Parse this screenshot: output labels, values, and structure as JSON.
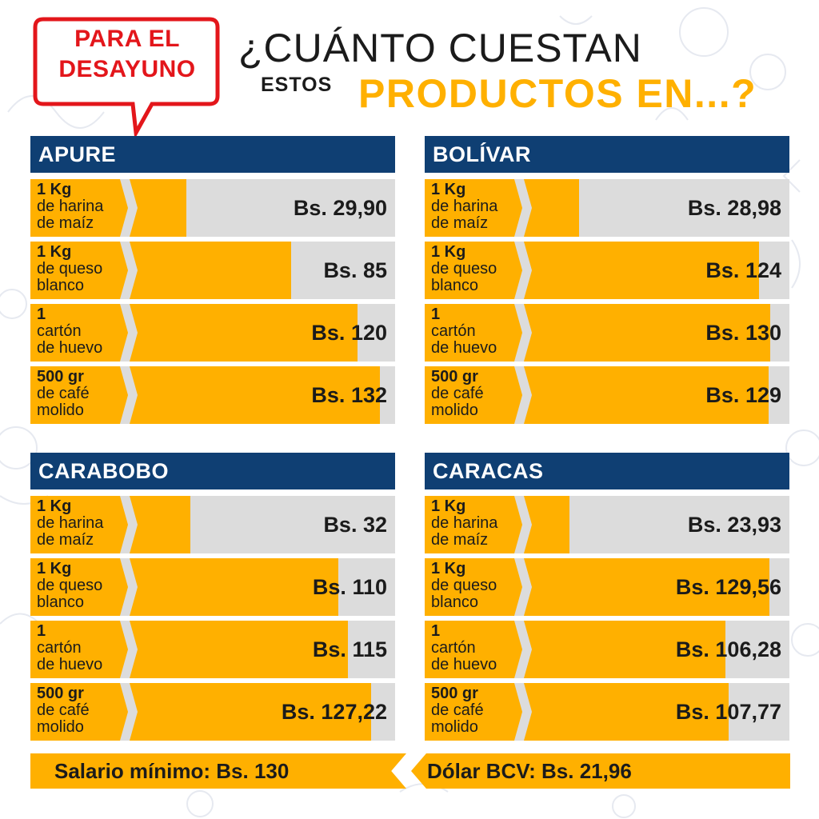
{
  "header": {
    "badge_line1": "PARA EL",
    "badge_line2": "DESAYUNO",
    "title_line1": "¿CUÁNTO CUESTAN",
    "title_estos": "ESTOS",
    "title_line2": "PRODUCTOS EN...?"
  },
  "colors": {
    "header_blue": "#0f3f73",
    "bar_yellow": "#ffb000",
    "row_gray": "#dcdcdc",
    "badge_red": "#e3161b"
  },
  "chart_data": {
    "type": "bar",
    "categories": [
      "1 Kg de harina de maíz",
      "1 Kg de queso blanco",
      "1 cartón de huevo",
      "500 gr de café molido"
    ],
    "scale_max": 140,
    "panels": [
      {
        "region": "APURE",
        "rows": [
          {
            "qty": "1 Kg",
            "desc1": "de harina",
            "desc2": "de maíz",
            "value": 29.9,
            "price": "Bs. 29,90"
          },
          {
            "qty": "1 Kg",
            "desc1": "de queso",
            "desc2": "blanco",
            "value": 85,
            "price": "Bs. 85"
          },
          {
            "qty": "1",
            "desc1": "cartón",
            "desc2": "de huevo",
            "value": 120,
            "price": "Bs. 120"
          },
          {
            "qty": "500 gr",
            "desc1": "de café",
            "desc2": "molido",
            "value": 132,
            "price": "Bs. 132"
          }
        ]
      },
      {
        "region": "BOLÍVAR",
        "rows": [
          {
            "qty": "1 Kg",
            "desc1": "de harina",
            "desc2": "de maíz",
            "value": 28.98,
            "price": "Bs. 28,98"
          },
          {
            "qty": "1 Kg",
            "desc1": "de queso",
            "desc2": "blanco",
            "value": 124,
            "price": "Bs. 124"
          },
          {
            "qty": "1",
            "desc1": "cartón",
            "desc2": "de huevo",
            "value": 130,
            "price": "Bs. 130"
          },
          {
            "qty": "500 gr",
            "desc1": "de café",
            "desc2": "molido",
            "value": 129,
            "price": "Bs. 129"
          }
        ]
      },
      {
        "region": "CARABOBO",
        "rows": [
          {
            "qty": "1 Kg",
            "desc1": "de harina",
            "desc2": "de maíz",
            "value": 32,
            "price": "Bs. 32"
          },
          {
            "qty": "1 Kg",
            "desc1": "de queso",
            "desc2": "blanco",
            "value": 110,
            "price": "Bs. 110"
          },
          {
            "qty": "1",
            "desc1": "cartón",
            "desc2": "de huevo",
            "value": 115,
            "price": "Bs. 115"
          },
          {
            "qty": "500 gr",
            "desc1": "de café",
            "desc2": "molido",
            "value": 127.22,
            "price": "Bs. 127,22"
          }
        ]
      },
      {
        "region": "CARACAS",
        "rows": [
          {
            "qty": "1 Kg",
            "desc1": "de harina",
            "desc2": "de maíz",
            "value": 23.93,
            "price": "Bs. 23,93"
          },
          {
            "qty": "1 Kg",
            "desc1": "de queso",
            "desc2": "blanco",
            "value": 129.56,
            "price": "Bs. 129,56"
          },
          {
            "qty": "1",
            "desc1": "cartón",
            "desc2": "de huevo",
            "value": 106.28,
            "price": "Bs. 106,28"
          },
          {
            "qty": "500 gr",
            "desc1": "de café",
            "desc2": "molido",
            "value": 107.77,
            "price": "Bs. 107,77"
          }
        ]
      }
    ]
  },
  "footer": {
    "salario": "Salario mínimo: Bs. 130",
    "dolar": "Dólar BCV: Bs. 21,96"
  }
}
